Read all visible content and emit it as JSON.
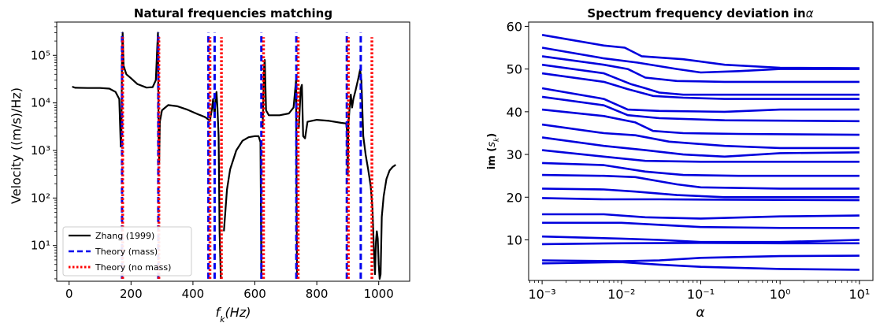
{
  "chart_data": [
    {
      "type": "line",
      "title": "Natural frequencies matching",
      "xlabel_main": "f",
      "xlabel_sub": "k",
      "xlabel_rest": "(Hz)",
      "ylabel": "Velocity ((m/s)/Hz)",
      "xlim": [
        -40,
        1100
      ],
      "ylim_log10": [
        0.25,
        5.7
      ],
      "x_ticks": [
        0,
        200,
        400,
        600,
        800,
        1000
      ],
      "x_tick_labels": [
        "0",
        "200",
        "400",
        "600",
        "800",
        "1000"
      ],
      "y_ticks_log10": [
        1,
        2,
        3,
        4,
        5
      ],
      "y_tick_labels": [
        "10¹",
        "10²",
        "10³",
        "10⁴",
        "10⁵"
      ],
      "grid": false,
      "legend_position": "lower-left",
      "series_lines": [
        {
          "name": "Zhang (1999)",
          "color": "#000000",
          "style": "solid",
          "points": [
            [
              10,
              22000
            ],
            [
              20,
              20800
            ],
            [
              60,
              20600
            ],
            [
              100,
              20600
            ],
            [
              130,
              20000
            ],
            [
              150,
              17000
            ],
            [
              162,
              12000
            ],
            [
              167,
              1200
            ],
            [
              169,
              2000
            ],
            [
              171,
              100000
            ],
            [
              173,
              300000
            ],
            [
              176,
              60000
            ],
            [
              185,
              40000
            ],
            [
              200,
              33000
            ],
            [
              220,
              25000
            ],
            [
              250,
              21000
            ],
            [
              270,
              21500
            ],
            [
              280,
              30000
            ],
            [
              285,
              160000
            ],
            [
              287,
              300000
            ],
            [
              289,
              2000
            ],
            [
              291,
              550
            ],
            [
              293,
              4000
            ],
            [
              300,
              7000
            ],
            [
              320,
              9000
            ],
            [
              350,
              8500
            ],
            [
              380,
              7300
            ],
            [
              410,
              6000
            ],
            [
              440,
              5000
            ],
            [
              455,
              4200
            ],
            [
              462,
              8000
            ],
            [
              465,
              12000
            ],
            [
              467,
              9000
            ],
            [
              470,
              5000
            ],
            [
              473,
              12000
            ],
            [
              476,
              17000
            ],
            [
              479,
              8000
            ],
            [
              483,
              2000
            ],
            [
              486,
              20
            ],
            [
              490,
              2
            ]
          ],
          "points2": [
            [
              500,
              20
            ],
            [
              510,
              150
            ],
            [
              520,
              400
            ],
            [
              540,
              1000
            ],
            [
              560,
              1600
            ],
            [
              580,
              1900
            ],
            [
              600,
              2000
            ],
            [
              612,
              2000
            ],
            [
              618,
              1500
            ],
            [
              621,
              2
            ]
          ],
          "points3": [
            [
              625,
              3000
            ],
            [
              630,
              60000
            ],
            [
              632,
              80000
            ],
            [
              636,
              7000
            ],
            [
              645,
              5500
            ],
            [
              680,
              5500
            ],
            [
              710,
              6000
            ],
            [
              725,
              8000
            ],
            [
              733,
              30000
            ],
            [
              736,
              2
            ]
          ],
          "points4": [
            [
              742,
              3000
            ],
            [
              748,
              20000
            ],
            [
              752,
              24000
            ],
            [
              756,
              2000
            ],
            [
              762,
              1800
            ],
            [
              770,
              4000
            ],
            [
              800,
              4400
            ],
            [
              840,
              4200
            ],
            [
              880,
              3800
            ],
            [
              895,
              3700
            ],
            [
              898,
              2500
            ],
            [
              900,
              300
            ],
            [
              902,
              3500
            ],
            [
              906,
              8000
            ],
            [
              910,
              15000
            ],
            [
              914,
              8000
            ],
            [
              918,
              12000
            ],
            [
              925,
              18000
            ],
            [
              935,
              35000
            ],
            [
              940,
              50000
            ],
            [
              944,
              30000
            ],
            [
              950,
              2000
            ],
            [
              958,
              800
            ],
            [
              966,
              400
            ],
            [
              974,
              180
            ],
            [
              980,
              60
            ],
            [
              984,
              10
            ],
            [
              988,
              2.5
            ],
            [
              991,
              12
            ],
            [
              994,
              20
            ],
            [
              997,
              14
            ],
            [
              1000,
              4
            ],
            [
              1003,
              2
            ],
            [
              1006,
              2.5
            ],
            [
              1010,
              40
            ],
            [
              1016,
              110
            ],
            [
              1025,
              250
            ],
            [
              1035,
              380
            ],
            [
              1045,
              450
            ],
            [
              1055,
              500
            ]
          ]
        },
        {
          "name": "Theory (mass)",
          "color": "#0000ee",
          "style": "dashed",
          "x_positions": [
            171,
            288,
            450,
            470,
            621,
            734,
            897,
            942
          ]
        },
        {
          "name": "Theory (no mass)",
          "color": "#ff0000",
          "style": "dotted",
          "x_positions": [
            173,
            290,
            455,
            492,
            628,
            740,
            902,
            978
          ]
        }
      ],
      "vline_range": [
        2,
        300000
      ]
    },
    {
      "type": "line",
      "title": "Spectrum frequency deviation in",
      "title_symbol": "α",
      "xlabel": "α",
      "ylabel_main": "im (",
      "ylabel_sub": "s",
      "ylabel_subk": "k",
      "ylabel_rest": ")",
      "xlim_log10": [
        -3.17,
        1.17
      ],
      "ylim": [
        0.5,
        61
      ],
      "x_ticks_log10": [
        -3,
        -2,
        -1,
        0,
        1
      ],
      "x_tick_labels": [
        "10⁻³",
        "10⁻²",
        "10⁻¹",
        "10⁰",
        "10¹"
      ],
      "y_ticks": [
        10,
        20,
        30,
        40,
        50,
        60
      ],
      "y_tick_labels": [
        "10",
        "20",
        "30",
        "40",
        "50",
        "60"
      ],
      "grid": false,
      "line_color": "#0000dd",
      "curves": [
        [
          [
            0.001,
            58
          ],
          [
            0.006,
            55.5
          ],
          [
            0.011,
            55
          ],
          [
            0.018,
            53
          ],
          [
            0.06,
            52.3
          ],
          [
            0.2,
            51
          ],
          [
            1,
            50.3
          ],
          [
            10,
            50.2
          ]
        ],
        [
          [
            0.001,
            55
          ],
          [
            0.006,
            52.5
          ],
          [
            0.016,
            51.5
          ],
          [
            0.05,
            50
          ],
          [
            0.1,
            49.2
          ],
          [
            0.3,
            49.5
          ],
          [
            1,
            50
          ],
          [
            10,
            50
          ]
        ],
        [
          [
            0.001,
            53
          ],
          [
            0.006,
            51
          ],
          [
            0.012,
            50
          ],
          [
            0.02,
            48
          ],
          [
            0.05,
            47.2
          ],
          [
            0.2,
            47
          ],
          [
            1,
            47
          ],
          [
            10,
            47
          ]
        ],
        [
          [
            0.001,
            51
          ],
          [
            0.006,
            49
          ],
          [
            0.013,
            46.5
          ],
          [
            0.02,
            45.5
          ],
          [
            0.03,
            44.5
          ],
          [
            0.06,
            44
          ],
          [
            0.3,
            44
          ],
          [
            10,
            44
          ]
        ],
        [
          [
            0.001,
            49
          ],
          [
            0.006,
            47
          ],
          [
            0.012,
            45.3
          ],
          [
            0.025,
            43.7
          ],
          [
            0.06,
            43.3
          ],
          [
            0.2,
            43
          ],
          [
            10,
            43
          ]
        ],
        [
          [
            0.001,
            45.5
          ],
          [
            0.006,
            43
          ],
          [
            0.012,
            40.5
          ],
          [
            0.03,
            40.2
          ],
          [
            0.2,
            40
          ],
          [
            1,
            40.5
          ],
          [
            10,
            40.5
          ]
        ],
        [
          [
            0.001,
            43.5
          ],
          [
            0.006,
            41.5
          ],
          [
            0.012,
            39.2
          ],
          [
            0.03,
            38.5
          ],
          [
            0.2,
            38
          ],
          [
            10,
            37.8
          ]
        ],
        [
          [
            0.001,
            40.5
          ],
          [
            0.006,
            39
          ],
          [
            0.015,
            37.5
          ],
          [
            0.025,
            35.5
          ],
          [
            0.06,
            35
          ],
          [
            0.3,
            34.8
          ],
          [
            10,
            34.6
          ]
        ],
        [
          [
            0.001,
            37
          ],
          [
            0.006,
            35
          ],
          [
            0.015,
            34.5
          ],
          [
            0.04,
            33
          ],
          [
            0.2,
            32
          ],
          [
            1,
            31.5
          ],
          [
            10,
            31.5
          ]
        ],
        [
          [
            0.001,
            34
          ],
          [
            0.006,
            32
          ],
          [
            0.02,
            31
          ],
          [
            0.06,
            30
          ],
          [
            0.2,
            29.5
          ],
          [
            1,
            30.3
          ],
          [
            10,
            30.5
          ]
        ],
        [
          [
            0.001,
            31
          ],
          [
            0.006,
            29.5
          ],
          [
            0.02,
            28.5
          ],
          [
            0.1,
            28.3
          ],
          [
            10,
            28.3
          ]
        ],
        [
          [
            0.001,
            28
          ],
          [
            0.006,
            27.5
          ],
          [
            0.02,
            26
          ],
          [
            0.06,
            25.2
          ],
          [
            0.3,
            25
          ],
          [
            10,
            25
          ]
        ],
        [
          [
            0.001,
            25.2
          ],
          [
            0.006,
            25
          ],
          [
            0.015,
            24.7
          ],
          [
            0.05,
            23
          ],
          [
            0.1,
            22.3
          ],
          [
            1,
            22
          ],
          [
            10,
            22
          ]
        ],
        [
          [
            0.001,
            22
          ],
          [
            0.006,
            21.8
          ],
          [
            0.015,
            21.3
          ],
          [
            0.05,
            20.5
          ],
          [
            0.2,
            20
          ],
          [
            1,
            20
          ],
          [
            10,
            20
          ]
        ],
        [
          [
            0.001,
            19.8
          ],
          [
            0.006,
            19.5
          ],
          [
            0.03,
            19.5
          ],
          [
            0.2,
            19.4
          ],
          [
            10,
            19.3
          ]
        ],
        [
          [
            0.001,
            16
          ],
          [
            0.006,
            16
          ],
          [
            0.02,
            15.3
          ],
          [
            0.1,
            15
          ],
          [
            1,
            15.5
          ],
          [
            10,
            15.7
          ]
        ],
        [
          [
            0.001,
            14
          ],
          [
            0.01,
            14
          ],
          [
            0.1,
            13
          ],
          [
            1,
            12.8
          ],
          [
            10,
            12.8
          ]
        ],
        [
          [
            0.001,
            10.8
          ],
          [
            0.01,
            10.3
          ],
          [
            0.03,
            10
          ],
          [
            0.1,
            9.5
          ],
          [
            1,
            9.5
          ],
          [
            10,
            10
          ]
        ],
        [
          [
            0.001,
            9
          ],
          [
            0.01,
            9.2
          ],
          [
            0.1,
            9.3
          ],
          [
            1,
            9.2
          ],
          [
            10,
            9.2
          ]
        ],
        [
          [
            0.001,
            5.2
          ],
          [
            0.01,
            5
          ],
          [
            0.03,
            5.2
          ],
          [
            0.1,
            5.8
          ],
          [
            1,
            6.2
          ],
          [
            10,
            6.3
          ]
        ],
        [
          [
            0.001,
            4.5
          ],
          [
            0.01,
            4.8
          ],
          [
            0.03,
            4.2
          ],
          [
            0.1,
            3.7
          ],
          [
            1,
            3.2
          ],
          [
            10,
            3
          ]
        ]
      ]
    }
  ]
}
